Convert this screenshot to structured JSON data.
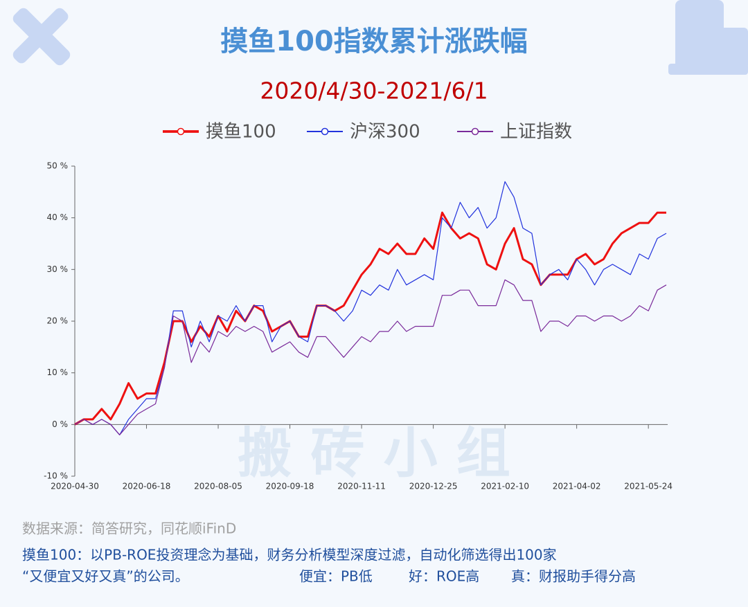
{
  "chart_data": {
    "type": "line",
    "title": "摸鱼100指数累计涨跌幅",
    "subtitle": "2020/4/30-2021/6/1",
    "watermark": "搬 砖 小 组",
    "categories": [
      "2020-04-30",
      null,
      null,
      null,
      null,
      null,
      null,
      null,
      "2020-06-18",
      null,
      null,
      null,
      null,
      null,
      null,
      null,
      "2020-08-05",
      null,
      null,
      null,
      null,
      null,
      null,
      null,
      "2020-09-18",
      null,
      null,
      null,
      null,
      null,
      null,
      null,
      "2020-11-11",
      null,
      null,
      null,
      null,
      null,
      null,
      null,
      "2020-12-25",
      null,
      null,
      null,
      null,
      null,
      null,
      null,
      "2021-02-10",
      null,
      null,
      null,
      null,
      null,
      null,
      null,
      "2021-04-02",
      null,
      null,
      null,
      null,
      null,
      null,
      null,
      "2021-05-24",
      null,
      null
    ],
    "series": [
      {
        "name": "摸鱼100",
        "color": "#ee1111",
        "width": 3,
        "values": [
          0,
          1,
          1,
          3,
          1,
          4,
          8,
          5,
          6,
          6,
          12,
          20,
          20,
          16,
          19,
          17,
          21,
          18,
          22,
          20,
          23,
          22,
          18,
          19,
          20,
          17,
          17,
          23,
          23,
          22,
          23,
          26,
          29,
          31,
          34,
          33,
          35,
          33,
          33,
          36,
          34,
          41,
          38,
          36,
          37,
          36,
          31,
          30,
          35,
          38,
          32,
          31,
          27,
          29,
          29,
          29,
          32,
          33,
          31,
          32,
          35,
          37,
          38,
          39,
          39,
          41,
          41
        ]
      },
      {
        "name": "沪深300",
        "color": "#2233dd",
        "width": 1.2,
        "values": [
          0,
          1,
          0,
          1,
          0,
          -2,
          1,
          3,
          5,
          5,
          11,
          22,
          22,
          15,
          20,
          16,
          21,
          20,
          23,
          20,
          23,
          23,
          16,
          19,
          20,
          17,
          16,
          23,
          23,
          22,
          20,
          22,
          26,
          25,
          27,
          26,
          30,
          27,
          28,
          29,
          28,
          40,
          38,
          43,
          40,
          42,
          38,
          40,
          47,
          44,
          38,
          37,
          27,
          29,
          30,
          28,
          32,
          30,
          27,
          30,
          31,
          30,
          29,
          33,
          32,
          36,
          37
        ]
      },
      {
        "name": "上证指数",
        "color": "#7a2a9a",
        "width": 1.2,
        "values": [
          0,
          1,
          0,
          1,
          0,
          -2,
          0,
          2,
          3,
          4,
          11,
          21,
          20,
          12,
          16,
          14,
          18,
          17,
          19,
          18,
          19,
          18,
          14,
          15,
          16,
          14,
          13,
          17,
          17,
          15,
          13,
          15,
          17,
          16,
          18,
          18,
          20,
          18,
          19,
          19,
          19,
          25,
          25,
          26,
          26,
          23,
          23,
          23,
          28,
          27,
          24,
          24,
          18,
          20,
          20,
          19,
          21,
          21,
          20,
          21,
          21,
          20,
          21,
          23,
          22,
          26,
          27
        ]
      }
    ],
    "ylim": [
      -10,
      50
    ],
    "yticks": [
      {
        "value": -10,
        "label": "-10 %"
      },
      {
        "value": 0,
        "label": "0 %"
      },
      {
        "value": 10,
        "label": "10 %"
      },
      {
        "value": 20,
        "label": "20 %"
      },
      {
        "value": 30,
        "label": "30 %"
      },
      {
        "value": 40,
        "label": "40 %"
      },
      {
        "value": 50,
        "label": "50 %"
      }
    ],
    "grid": false,
    "source": "数据来源：简答研究，同花顺iFinD",
    "note": [
      "摸鱼100：以PB-ROE投资理念为基础，财务分析模型深度过滤，自动化筛选得出100家",
      "“又便宜又好又真”的公司。",
      "便宜：PB低",
      "好：ROE高",
      "真：财报助手得分高"
    ]
  }
}
